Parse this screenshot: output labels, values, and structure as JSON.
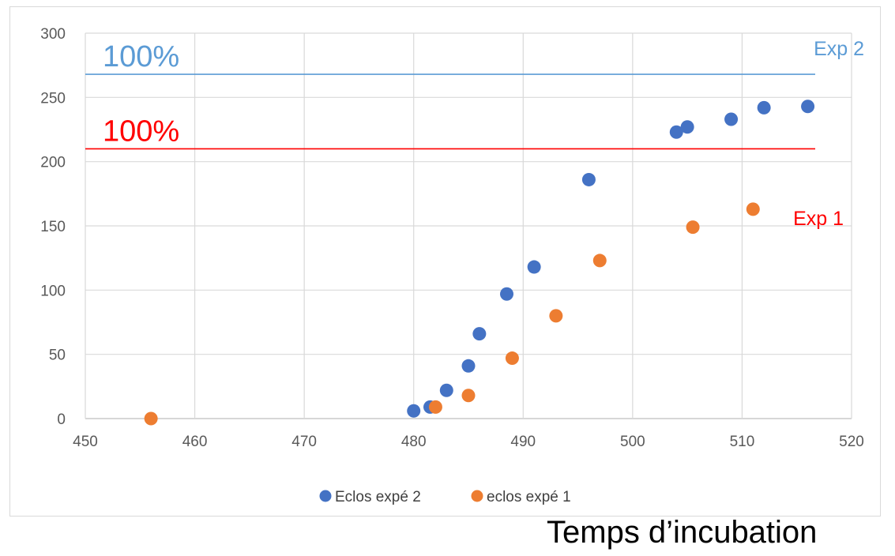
{
  "chart_data": {
    "type": "scatter",
    "xlim": [
      450,
      520
    ],
    "ylim": [
      0,
      300
    ],
    "x_ticks": [
      450,
      460,
      470,
      480,
      490,
      500,
      510,
      520
    ],
    "y_ticks": [
      0,
      50,
      100,
      150,
      200,
      250,
      300
    ],
    "grid": true,
    "legend_position": "bottom",
    "xlabel": "Temps d’incubation",
    "ylabel": "",
    "series": [
      {
        "name": "Eclos expé 2",
        "color": "#4472C4",
        "points": [
          [
            480,
            6
          ],
          [
            481.5,
            9
          ],
          [
            483,
            22
          ],
          [
            485,
            41
          ],
          [
            486,
            66
          ],
          [
            488.5,
            97
          ],
          [
            491,
            118
          ],
          [
            496,
            186
          ],
          [
            504,
            223
          ],
          [
            505,
            227
          ],
          [
            509,
            233
          ],
          [
            512,
            242
          ],
          [
            516,
            243
          ]
        ]
      },
      {
        "name": "eclos expé 1",
        "color": "#ED7D31",
        "points": [
          [
            456,
            0
          ],
          [
            482,
            9
          ],
          [
            485,
            18
          ],
          [
            489,
            47
          ],
          [
            493,
            80
          ],
          [
            497,
            123
          ],
          [
            505.5,
            149
          ],
          [
            511,
            163
          ]
        ]
      }
    ],
    "reference_lines": [
      {
        "y": 268,
        "color": "#5B9BD5",
        "label": "100%",
        "end_label": "Exp 2"
      },
      {
        "y": 210,
        "color": "#FF0000",
        "label": "100%",
        "end_label": "Exp 1"
      }
    ]
  }
}
